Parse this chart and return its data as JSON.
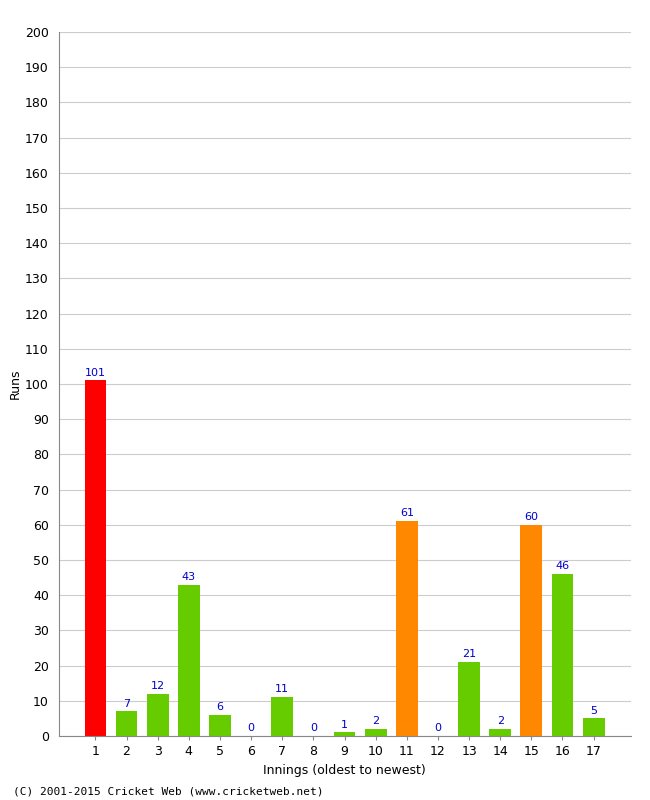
{
  "innings": [
    1,
    2,
    3,
    4,
    5,
    6,
    7,
    8,
    9,
    10,
    11,
    12,
    13,
    14,
    15,
    16,
    17
  ],
  "values": [
    101,
    7,
    12,
    43,
    6,
    0,
    11,
    0,
    1,
    2,
    61,
    0,
    21,
    2,
    60,
    46,
    5
  ],
  "colors": [
    "#ff0000",
    "#66cc00",
    "#66cc00",
    "#66cc00",
    "#66cc00",
    "#66cc00",
    "#66cc00",
    "#66cc00",
    "#66cc00",
    "#66cc00",
    "#ff8800",
    "#66cc00",
    "#66cc00",
    "#66cc00",
    "#ff8800",
    "#66cc00",
    "#66cc00"
  ],
  "ylabel": "Runs",
  "xlabel": "Innings (oldest to newest)",
  "ylim": [
    0,
    200
  ],
  "yticks": [
    0,
    10,
    20,
    30,
    40,
    50,
    60,
    70,
    80,
    90,
    100,
    110,
    120,
    130,
    140,
    150,
    160,
    170,
    180,
    190,
    200
  ],
  "label_color": "#0000cc",
  "background_color": "#ffffff",
  "grid_color": "#cccccc",
  "footer": "(C) 2001-2015 Cricket Web (www.cricketweb.net)"
}
